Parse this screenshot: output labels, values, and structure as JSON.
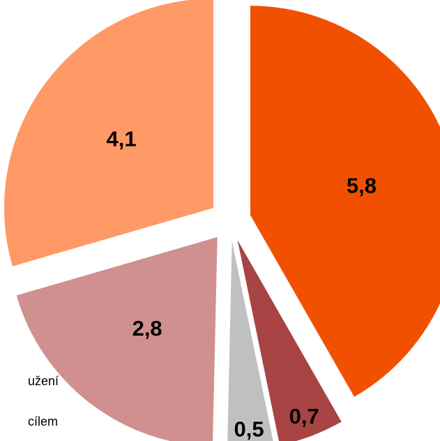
{
  "chart_data": {
    "type": "pie",
    "slices": [
      {
        "value": 5.8,
        "label": "5,8",
        "color": "#f05000"
      },
      {
        "value": 0.7,
        "label": "0,7",
        "color": "#a84444"
      },
      {
        "value": 0.5,
        "label": "0,5",
        "color": "#c0c0c0"
      },
      {
        "value": 2.8,
        "label": "2,8",
        "color": "#d09090"
      },
      {
        "value": 4.1,
        "label": "4,1",
        "color": "#ff9966"
      }
    ],
    "exploded": true,
    "start": "12 o'clock",
    "direction": "clockwise"
  },
  "legend_fragments": [
    "užení",
    "cílem"
  ]
}
